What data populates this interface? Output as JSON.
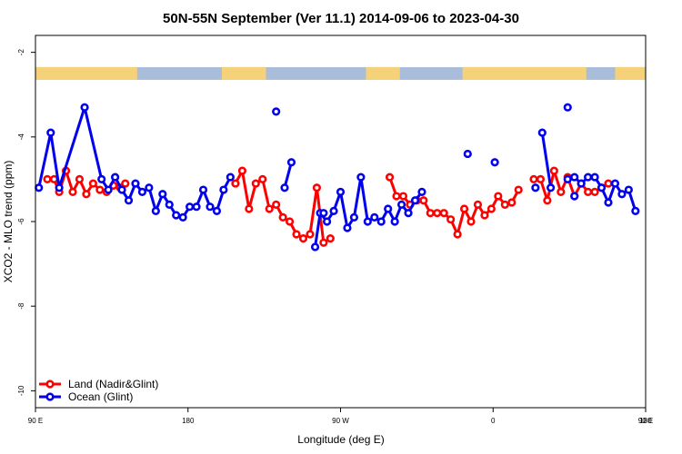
{
  "chart_data": {
    "type": "line",
    "title": "50N-55N September (Ver 11.1)   2014-09-06 to 2023-04-30",
    "xlabel": "Longitude (deg E)",
    "ylabel": "XCO2 - MLO trend (ppm)",
    "xlim": [
      90,
      450
    ],
    "ylim": [
      -10.4,
      -1.6
    ],
    "x_ticks": [
      90,
      180,
      270,
      360,
      450,
      540
    ],
    "x_tick_labels": [
      "90 E",
      "180",
      "90 W",
      "0",
      "90 E",
      "180"
    ],
    "y_ticks": [
      -10,
      -8,
      -6,
      -4,
      -2
    ],
    "y_tick_labels": [
      "-10",
      "-8",
      "-6",
      "-4",
      "-2"
    ],
    "land_mask": {
      "description": "latitude band land/ocean strip",
      "y_range": [
        -2.65,
        -2.35
      ],
      "colors": {
        "land": "#f5d27a",
        "ocean": "#a9bcd9"
      },
      "land_segments": [
        [
          90,
          150
        ],
        [
          200,
          226
        ],
        [
          285,
          305
        ],
        [
          342,
          415
        ],
        [
          432,
          450
        ]
      ]
    },
    "series": [
      {
        "name": "Land (Nadir&Glint)",
        "color": "#ff0000",
        "segments": [
          [
            [
              97,
              -5.0
            ],
            [
              101,
              -5.0
            ],
            [
              104,
              -5.3
            ],
            [
              108,
              -4.8
            ],
            [
              112,
              -5.3
            ],
            [
              116,
              -5.0
            ],
            [
              120,
              -5.35
            ],
            [
              124,
              -5.1
            ],
            [
              128,
              -5.25
            ],
            [
              132,
              -5.3
            ],
            [
              136,
              -5.15
            ],
            [
              140,
              -5.2
            ],
            [
              143,
              -5.1
            ]
          ],
          [
            [
              208,
              -5.1
            ],
            [
              212,
              -4.8
            ],
            [
              216,
              -5.7
            ],
            [
              220,
              -5.1
            ],
            [
              224,
              -5.0
            ],
            [
              228,
              -5.7
            ],
            [
              232,
              -5.6
            ],
            [
              236,
              -5.9
            ],
            [
              240,
              -6.0
            ],
            [
              244,
              -6.3
            ],
            [
              248,
              -6.4
            ],
            [
              252,
              -6.3
            ],
            [
              256,
              -5.2
            ],
            [
              260,
              -6.5
            ],
            [
              264,
              -6.4
            ]
          ],
          [
            [
              299,
              -4.95
            ],
            [
              303,
              -5.4
            ],
            [
              307,
              -5.4
            ],
            [
              311,
              -5.6
            ],
            [
              315,
              -5.5
            ],
            [
              319,
              -5.5
            ],
            [
              323,
              -5.8
            ],
            [
              327,
              -5.8
            ],
            [
              331,
              -5.8
            ],
            [
              335,
              -5.95
            ],
            [
              339,
              -6.3
            ],
            [
              343,
              -5.7
            ],
            [
              347,
              -6.0
            ],
            [
              351,
              -5.6
            ],
            [
              355,
              -5.85
            ],
            [
              359,
              -5.7
            ],
            [
              363,
              -5.4
            ],
            [
              367,
              -5.6
            ],
            [
              371,
              -5.55
            ],
            [
              375,
              -5.25
            ]
          ],
          [
            [
              384,
              -5.0
            ],
            [
              388,
              -5.0
            ],
            [
              392,
              -5.5
            ],
            [
              396,
              -4.8
            ],
            [
              400,
              -5.3
            ],
            [
              404,
              -4.95
            ],
            [
              408,
              -5.4
            ],
            [
              412,
              -5.1
            ],
            [
              416,
              -5.3
            ],
            [
              420,
              -5.3
            ],
            [
              424,
              -5.2
            ],
            [
              428,
              -5.1
            ]
          ]
        ]
      },
      {
        "name": "Ocean (Glint)",
        "color": "#0000ee",
        "segments": [
          [
            [
              92,
              -5.2
            ],
            [
              99,
              -3.9
            ],
            [
              104,
              -5.2
            ],
            [
              119,
              -3.3
            ],
            [
              129,
              -5.0
            ],
            [
              133,
              -5.25
            ],
            [
              137,
              -4.95
            ],
            [
              141,
              -5.25
            ],
            [
              145,
              -5.5
            ],
            [
              149,
              -5.1
            ],
            [
              153,
              -5.3
            ],
            [
              157,
              -5.2
            ],
            [
              161,
              -5.75
            ],
            [
              165,
              -5.35
            ],
            [
              169,
              -5.6
            ],
            [
              173,
              -5.85
            ],
            [
              177,
              -5.9
            ],
            [
              181,
              -5.65
            ],
            [
              185,
              -5.65
            ],
            [
              189,
              -5.25
            ],
            [
              193,
              -5.65
            ],
            [
              197,
              -5.75
            ],
            [
              201,
              -5.25
            ],
            [
              205,
              -4.95
            ]
          ],
          [
            [
              237,
              -5.2
            ],
            [
              241,
              -4.6
            ]
          ],
          [
            [
              255,
              -6.6
            ],
            [
              258,
              -5.8
            ],
            [
              262,
              -6.0
            ],
            [
              266,
              -5.75
            ],
            [
              270,
              -5.3
            ],
            [
              274,
              -6.15
            ],
            [
              278,
              -5.9
            ],
            [
              282,
              -4.95
            ],
            [
              286,
              -6.0
            ],
            [
              290,
              -5.9
            ],
            [
              294,
              -6.0
            ],
            [
              298,
              -5.7
            ],
            [
              302,
              -6.0
            ],
            [
              306,
              -5.6
            ],
            [
              310,
              -5.8
            ],
            [
              314,
              -5.5
            ],
            [
              318,
              -5.3
            ]
          ],
          [
            [
              420,
              -4.95
            ],
            [
              424,
              -5.2
            ],
            [
              428,
              -5.55
            ],
            [
              432,
              -5.1
            ],
            [
              436,
              -5.35
            ],
            [
              440,
              -5.25
            ],
            [
              444,
              -5.75
            ]
          ],
          [
            [
              385,
              -5.2
            ]
          ],
          [
            [
              389,
              -3.9
            ],
            [
              394,
              -5.2
            ]
          ],
          [
            [
              404,
              -3.3
            ]
          ],
          [
            [
              404,
              -5.0
            ],
            [
              408,
              -4.95
            ],
            [
              412,
              -5.1
            ],
            [
              416,
              -4.95
            ]
          ],
          [
            [
              260,
              -5.8
            ]
          ],
          [
            [
              232,
              -3.4
            ]
          ],
          [
            [
              345,
              -4.4
            ]
          ],
          [
            [
              361,
              -4.6
            ]
          ],
          [
            [
              408,
              -5.4
            ]
          ]
        ]
      }
    ],
    "legend": {
      "position": "bottom-left",
      "entries": [
        "Land (Nadir&Glint)",
        "Ocean (Glint)"
      ]
    },
    "grid": false
  }
}
